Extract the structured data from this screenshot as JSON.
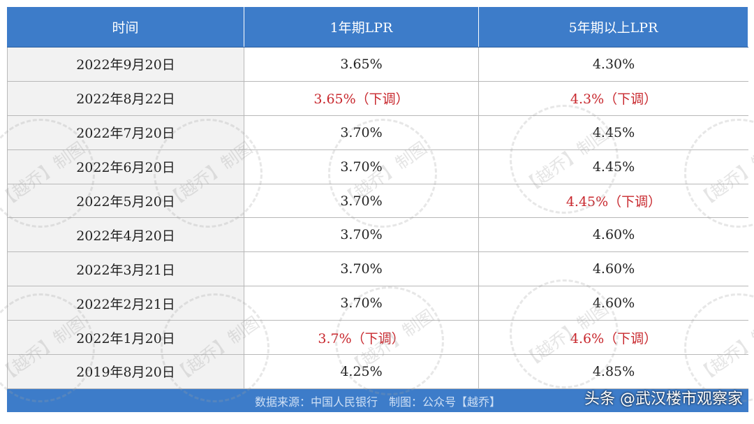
{
  "table": {
    "header": [
      "时间",
      "1年期LPR",
      "5年期以上LPR"
    ],
    "rows": [
      [
        "2022年9月20日",
        "3.65%",
        "4.30%"
      ],
      [
        "2022年8月22日",
        {
          "text": "3.65%（下调）",
          "color": "#c8282e"
        },
        {
          "text": "4.3%（下调）",
          "color": "#c8282e"
        }
      ],
      [
        "2022年7月20日",
        "3.70%",
        "4.45%"
      ],
      [
        "2022年6月20日",
        "3.70%",
        "4.45%"
      ],
      [
        "2022年5月20日",
        "3.70%",
        {
          "text": "4.45%（下调）",
          "color": "#c8282e"
        }
      ],
      [
        "2022年4月20日",
        "3.70%",
        "4.60%"
      ],
      [
        "2022年3月21日",
        "3.70%",
        "4.60%"
      ],
      [
        "2022年2月21日",
        "3.70%",
        "4.60%"
      ],
      [
        "2022年1月20日",
        {
          "text": "3.7%（下调）",
          "color": "#c8282e"
        },
        {
          "text": "4.6%（下调）",
          "color": "#c8282e"
        }
      ],
      [
        "2019年8月20日",
        "4.25%",
        "4.85%"
      ]
    ],
    "footer": "数据来源：中国人民银行　制图：公众号【越乔】"
  },
  "watermark": "【越乔】制图",
  "credit": "头条 @武汉楼市观察家"
}
